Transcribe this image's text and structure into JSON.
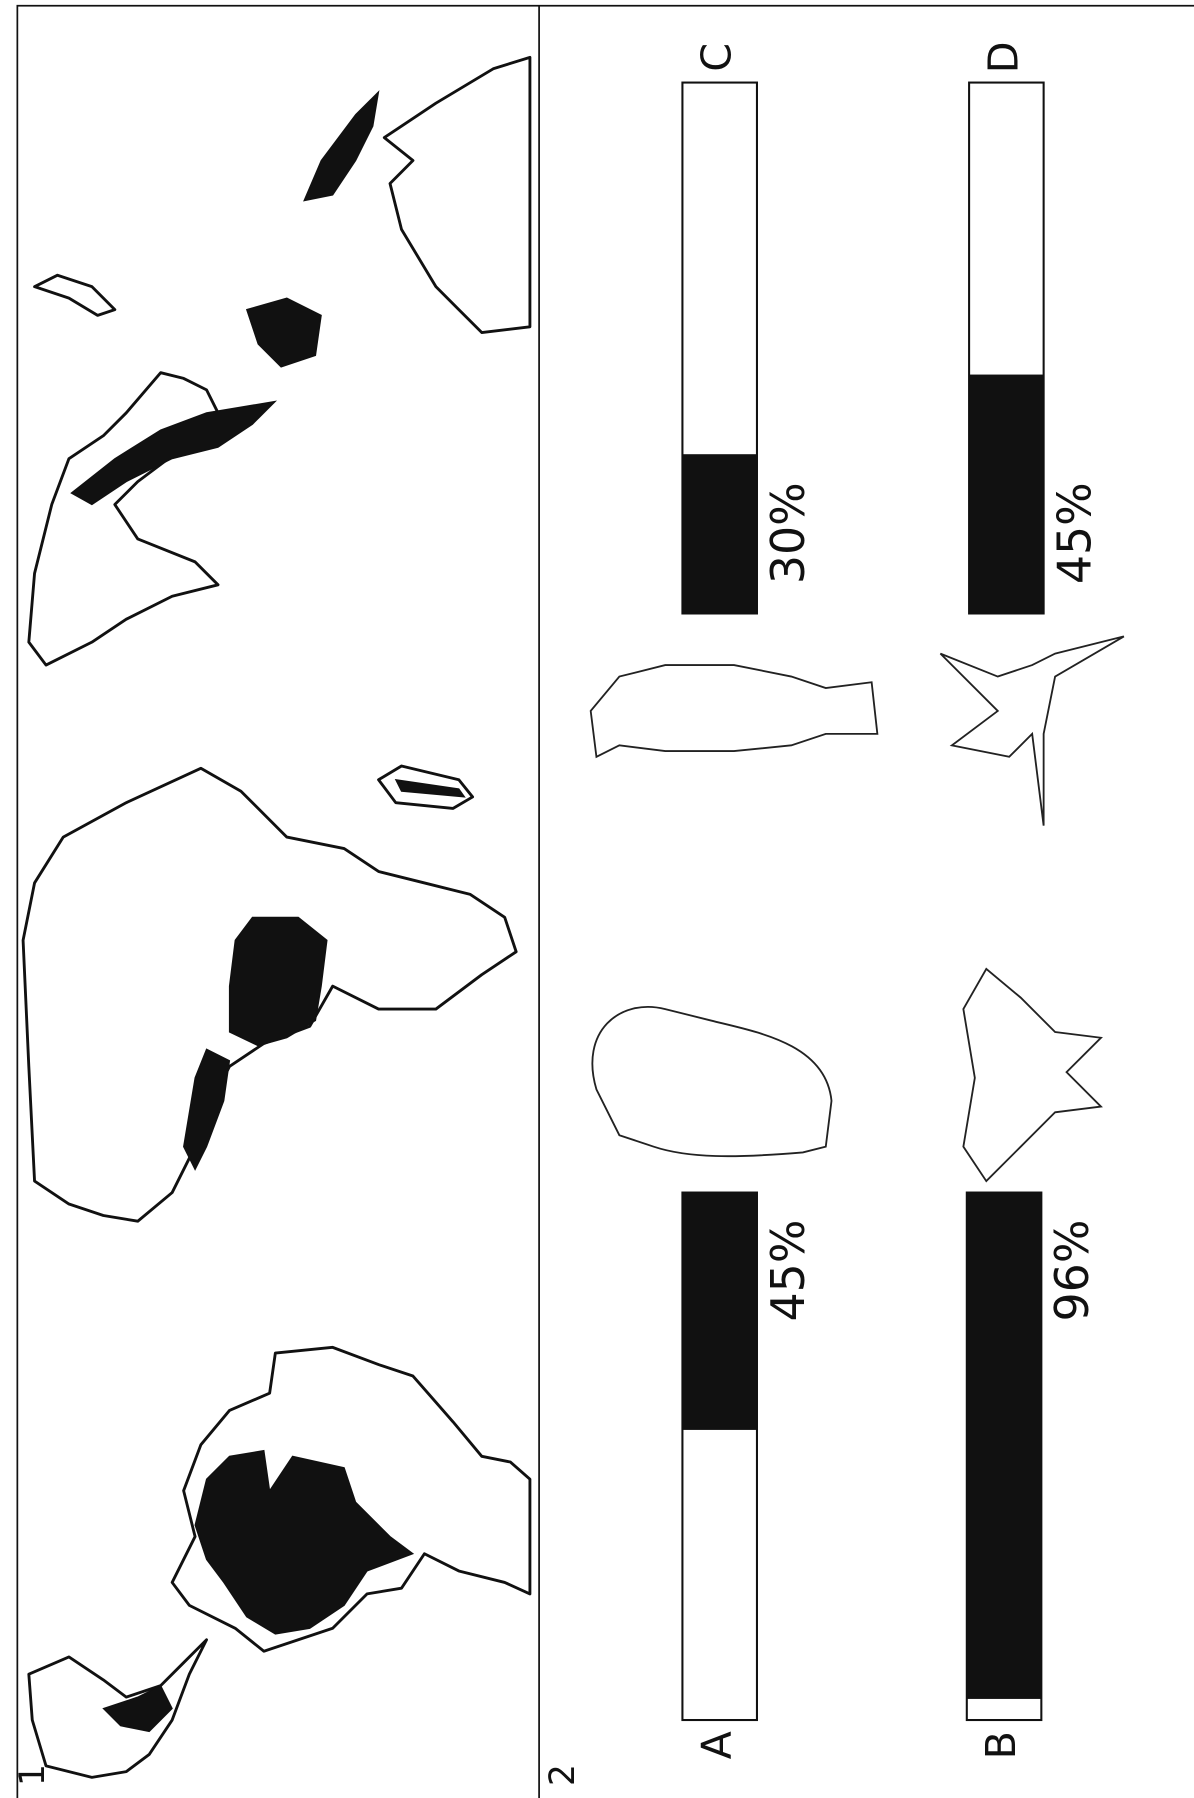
{
  "panel_labels": [
    "1",
    "2"
  ],
  "chart_data": {
    "type": "bar",
    "categories": [
      "A",
      "B",
      "C",
      "D"
    ],
    "values": [
      45,
      96,
      30,
      45
    ],
    "value_labels": [
      "45%",
      "96%",
      "30%",
      "45%"
    ],
    "ylim": [
      0,
      100
    ],
    "color": "#111111"
  }
}
